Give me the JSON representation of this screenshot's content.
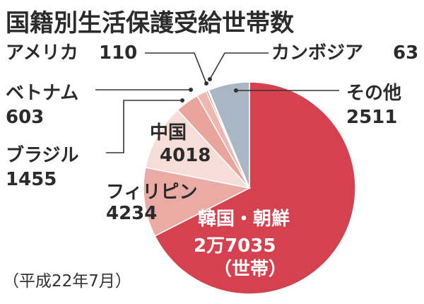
{
  "chart_data": {
    "type": "pie",
    "title": "国籍別生活保護受給世帯数",
    "note": "（平成22年7月）",
    "unit": "（世帯）",
    "slices": [
      {
        "name": "韓国・朝鮮",
        "value": 27035,
        "value_label": "2万7035",
        "color": "#d5414f"
      },
      {
        "name": "フィリピン",
        "value": 4234,
        "value_label": "4234",
        "color": "#eaaba5"
      },
      {
        "name": "中国",
        "value": 4018,
        "value_label": "4018",
        "color": "#f6ddd8"
      },
      {
        "name": "ブラジル",
        "value": 1455,
        "value_label": "1455",
        "color": "#e9a49c"
      },
      {
        "name": "ベトナム",
        "value": 603,
        "value_label": "603",
        "color": "#f0b7b0"
      },
      {
        "name": "アメリカ",
        "value": 110,
        "value_label": "110",
        "color": "#dc6b6d"
      },
      {
        "name": "カンボジア",
        "value": 63,
        "value_label": "63",
        "color": "#c93a44"
      },
      {
        "name": "その他",
        "value": 2511,
        "value_label": "2511",
        "color": "#a9b6c4"
      }
    ]
  }
}
